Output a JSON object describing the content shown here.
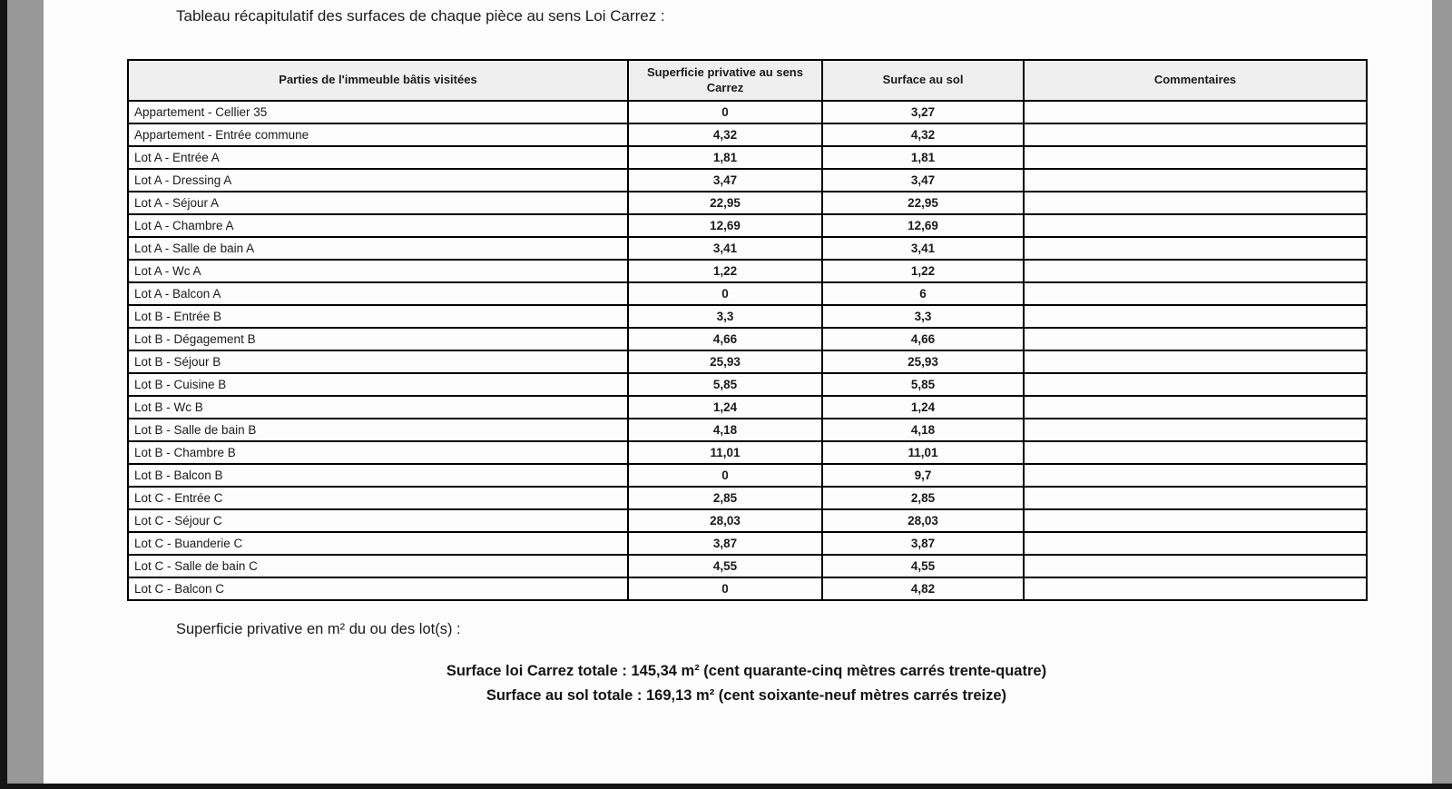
{
  "page": {
    "title": "Tableau récapitulatif des surfaces de chaque pièce au sens Loi Carrez :"
  },
  "table": {
    "headers": [
      "Parties de l'immeuble bâtis visitées",
      "Superficie privative au sens Carrez",
      "Surface au sol",
      "Commentaires"
    ],
    "rows": [
      {
        "piece": "Appartement - Cellier 35",
        "carrez": "0",
        "sol": "3,27",
        "commentaire": ""
      },
      {
        "piece": "Appartement - Entrée commune",
        "carrez": "4,32",
        "sol": "4,32",
        "commentaire": ""
      },
      {
        "piece": "Lot A - Entrée A",
        "carrez": "1,81",
        "sol": "1,81",
        "commentaire": ""
      },
      {
        "piece": "Lot A - Dressing A",
        "carrez": "3,47",
        "sol": "3,47",
        "commentaire": ""
      },
      {
        "piece": "Lot A - Séjour A",
        "carrez": "22,95",
        "sol": "22,95",
        "commentaire": ""
      },
      {
        "piece": "Lot A - Chambre A",
        "carrez": "12,69",
        "sol": "12,69",
        "commentaire": ""
      },
      {
        "piece": "Lot A - Salle de bain A",
        "carrez": "3,41",
        "sol": "3,41",
        "commentaire": ""
      },
      {
        "piece": "Lot A - Wc A",
        "carrez": "1,22",
        "sol": "1,22",
        "commentaire": ""
      },
      {
        "piece": "Lot A - Balcon A",
        "carrez": "0",
        "sol": "6",
        "commentaire": ""
      },
      {
        "piece": "Lot B - Entrée B",
        "carrez": "3,3",
        "sol": "3,3",
        "commentaire": ""
      },
      {
        "piece": "Lot B - Dégagement B",
        "carrez": "4,66",
        "sol": "4,66",
        "commentaire": ""
      },
      {
        "piece": "Lot B - Séjour B",
        "carrez": "25,93",
        "sol": "25,93",
        "commentaire": ""
      },
      {
        "piece": "Lot B - Cuisine B",
        "carrez": "5,85",
        "sol": "5,85",
        "commentaire": ""
      },
      {
        "piece": "Lot B - Wc B",
        "carrez": "1,24",
        "sol": "1,24",
        "commentaire": ""
      },
      {
        "piece": "Lot B - Salle de bain B",
        "carrez": "4,18",
        "sol": "4,18",
        "commentaire": ""
      },
      {
        "piece": "Lot B - Chambre B",
        "carrez": "11,01",
        "sol": "11,01",
        "commentaire": ""
      },
      {
        "piece": "Lot B - Balcon B",
        "carrez": "0",
        "sol": "9,7",
        "commentaire": ""
      },
      {
        "piece": "Lot C - Entrée C",
        "carrez": "2,85",
        "sol": "2,85",
        "commentaire": ""
      },
      {
        "piece": "Lot C - Séjour C",
        "carrez": "28,03",
        "sol": "28,03",
        "commentaire": ""
      },
      {
        "piece": "Lot C - Buanderie C",
        "carrez": "3,87",
        "sol": "3,87",
        "commentaire": ""
      },
      {
        "piece": "Lot C - Salle de bain C",
        "carrez": "4,55",
        "sol": "4,55",
        "commentaire": ""
      },
      {
        "piece": "Lot C - Balcon C",
        "carrez": "0",
        "sol": "4,82",
        "commentaire": ""
      }
    ]
  },
  "totals": {
    "intro": "Superficie privative en m² du ou des lot(s) :",
    "carrez_total": "Surface loi Carrez totale : 145,34 m² (cent quarante-cinq mètres carrés trente-quatre)",
    "sol_total": "Surface au sol totale : 169,13 m² (cent soixante-neuf mètres carrés treize)"
  },
  "colors": {
    "frame_black": "#141414",
    "frame_gray": "#989898",
    "page_bg": "#fdfdfd",
    "header_bg": "#efefef",
    "border": "#000000",
    "text": "#1a1a1a"
  }
}
